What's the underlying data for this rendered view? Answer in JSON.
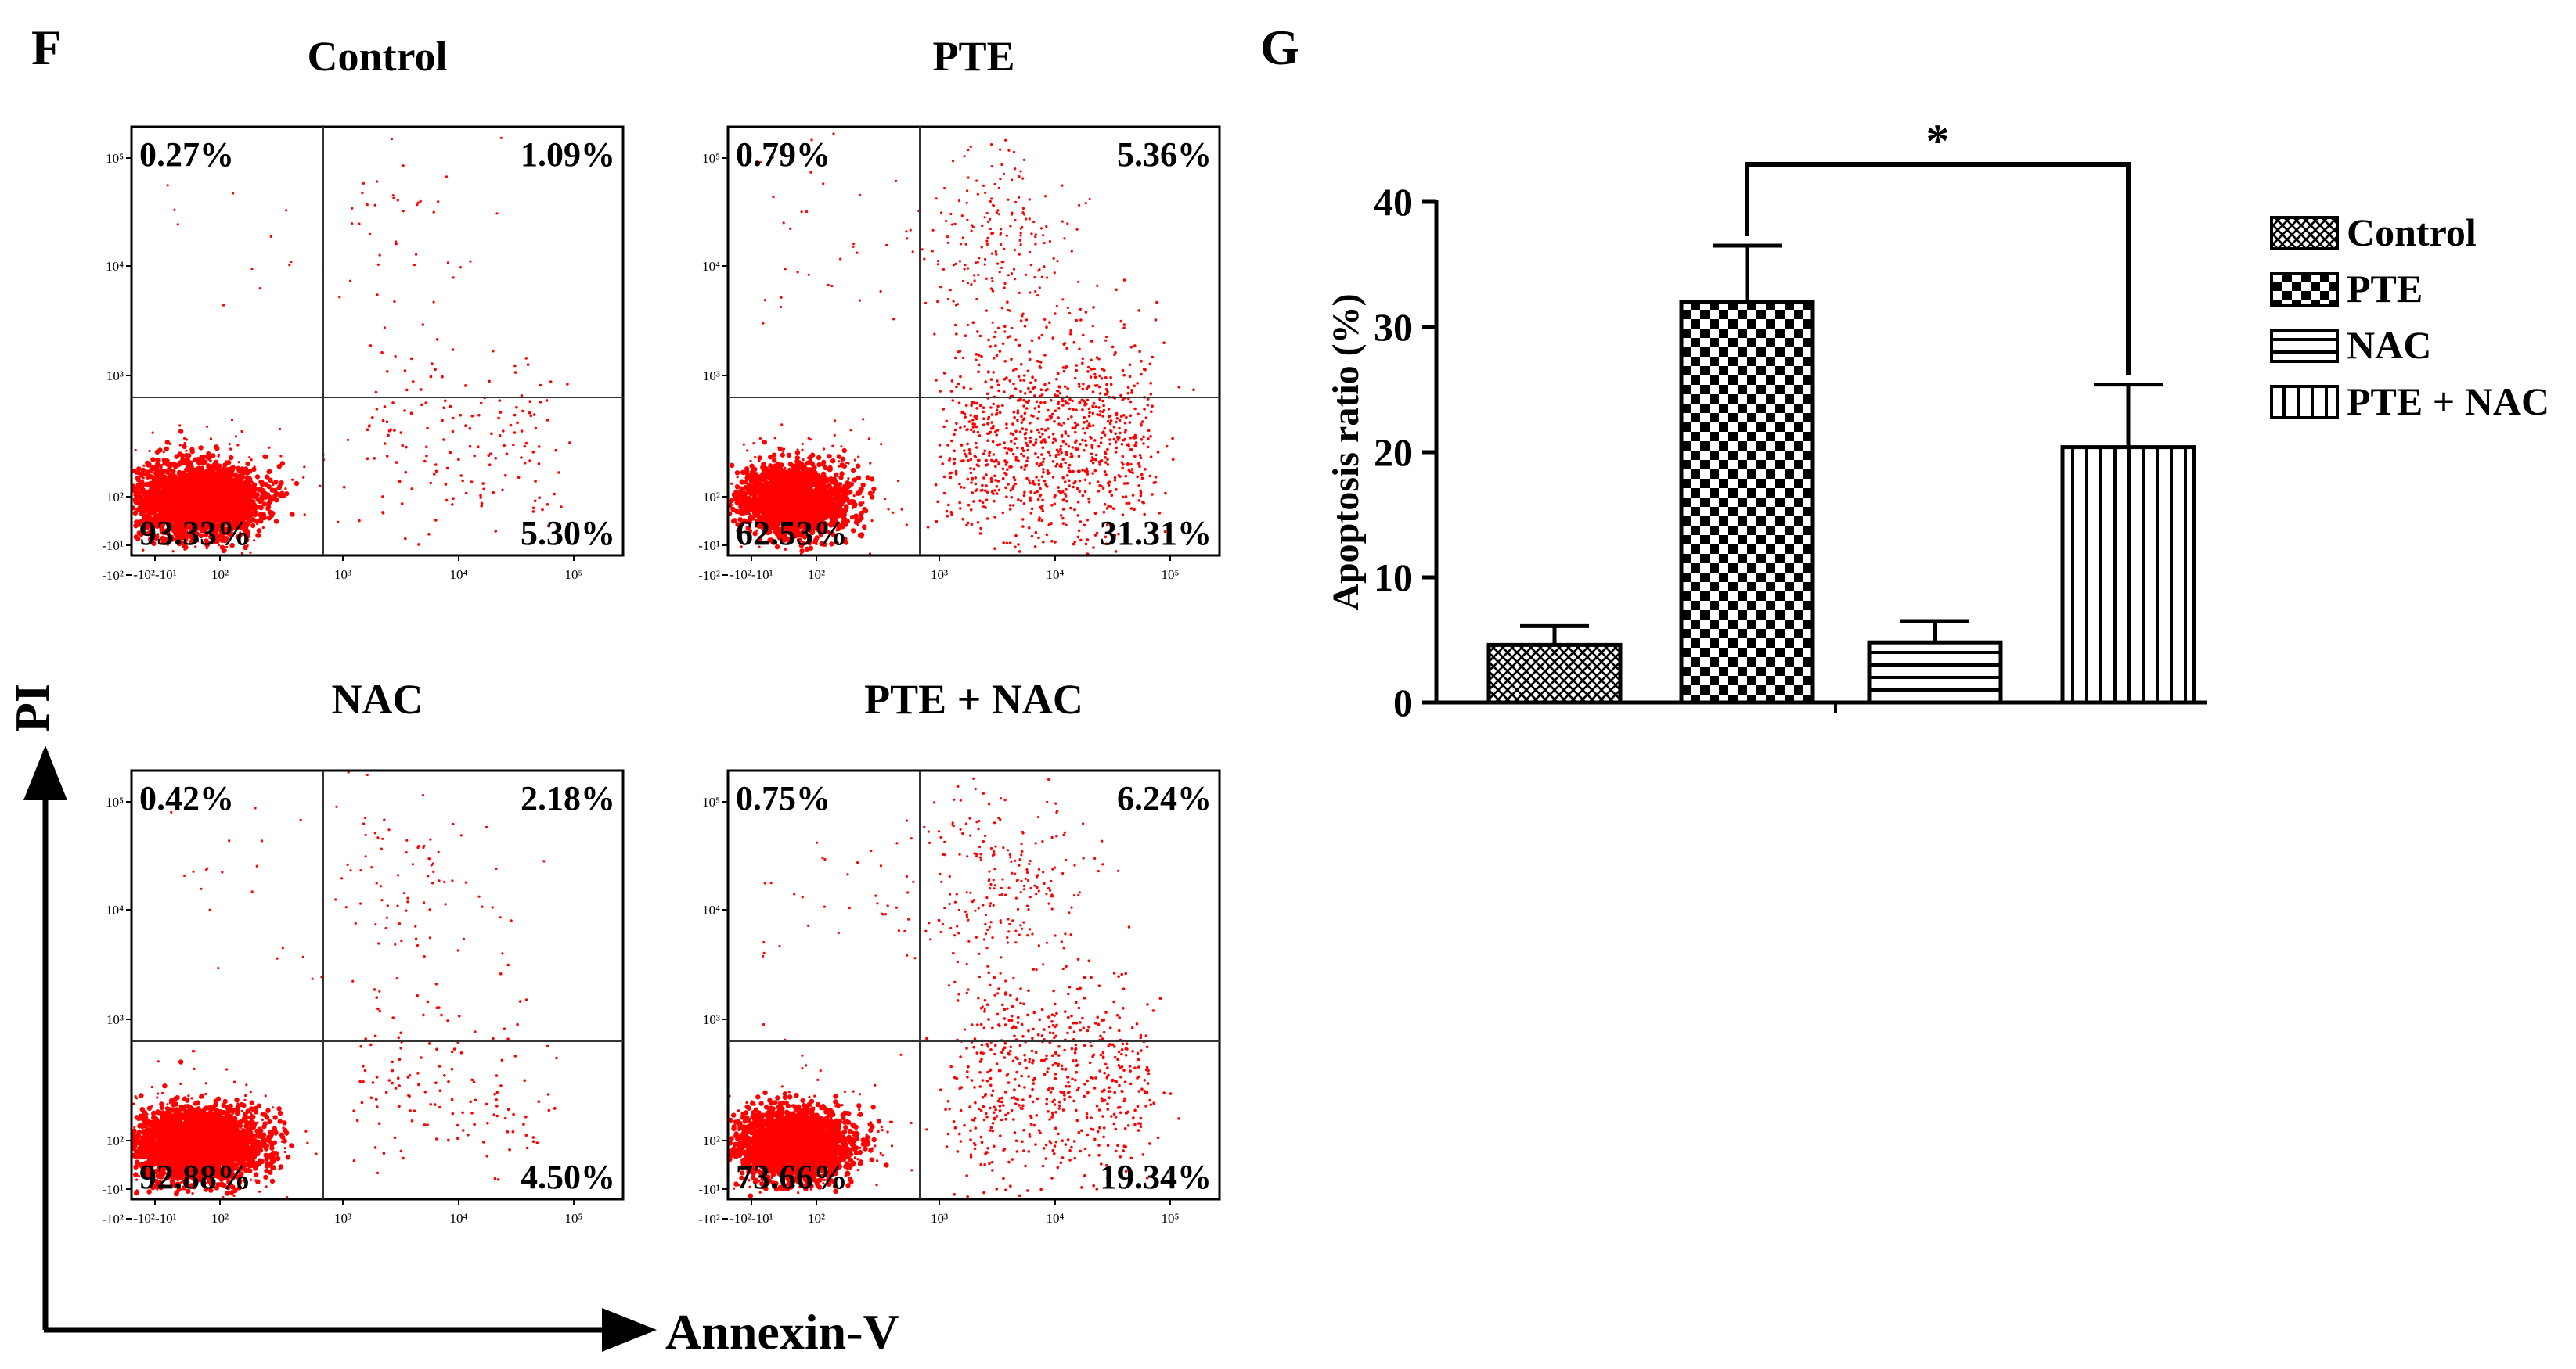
{
  "figure": {
    "panel_f_letter": "F",
    "panel_g_letter": "G",
    "y_axis_label": "PI",
    "x_axis_label": "Annexin-V"
  },
  "colors": {
    "dots": "#ff0000",
    "ink": "#000000"
  },
  "chart_data": [
    {
      "type": "scatter",
      "panel": "F",
      "title": "Flow cytometry Annexin-V / PI quadrant plots",
      "xlabel": "Annexin-V",
      "ylabel": "PI",
      "x_ticks": [
        "-10²-10¹",
        "10²",
        "10³",
        "10⁴",
        "10⁵"
      ],
      "y_ticks": [
        "10⁵",
        "10⁴",
        "10³",
        "10²",
        "-10¹",
        "-10²"
      ],
      "plots": [
        {
          "id": "control",
          "title": "Control",
          "q_ul": "0.27%",
          "q_ur": "1.09%",
          "q_ll": "93.33%",
          "q_lr": "5.30%"
        },
        {
          "id": "pte",
          "title": "PTE",
          "q_ul": "0.79%",
          "q_ur": "5.36%",
          "q_ll": "62.53%",
          "q_lr": "31.31%"
        },
        {
          "id": "nac",
          "title": "NAC",
          "q_ul": "0.42%",
          "q_ur": "2.18%",
          "q_ll": "92.88%",
          "q_lr": "4.50%"
        },
        {
          "id": "ptenac",
          "title": "PTE + NAC",
          "q_ul": "0.75%",
          "q_ur": "6.24%",
          "q_ll": "73.66%",
          "q_lr": "19.34%"
        }
      ]
    },
    {
      "type": "bar",
      "panel": "G",
      "title": "",
      "xlabel": "",
      "ylabel": "Apoptosis ratio (%)",
      "ylim": [
        0,
        40
      ],
      "yticks": [
        "0",
        "10",
        "20",
        "30",
        "40"
      ],
      "categories": [
        "Control",
        "PTE",
        "NAC",
        "PTE + NAC"
      ],
      "values": [
        4.6,
        32.0,
        4.8,
        20.4
      ],
      "errors": [
        1.5,
        4.5,
        1.7,
        5.0
      ],
      "patterns": [
        "crosshatch",
        "checker",
        "horizontal",
        "vertical"
      ],
      "significance": {
        "from": "PTE",
        "to": "PTE + NAC",
        "label": "*"
      },
      "legend": [
        "Control",
        "PTE",
        "NAC",
        "PTE + NAC"
      ],
      "legend_position": "right"
    }
  ]
}
